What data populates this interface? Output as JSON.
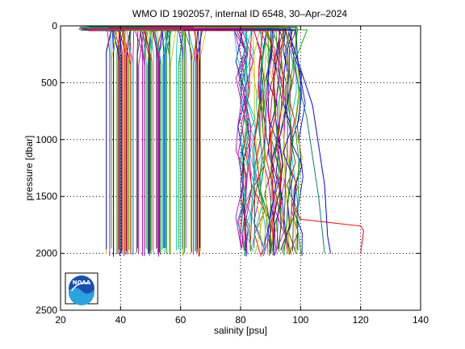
{
  "chart_data": {
    "type": "line",
    "title": "WMO ID 1902057, internal ID 6548, 30–Apr–2024",
    "xlabel": "salinity [psu]",
    "ylabel": "pressure [dbar]",
    "xlim": [
      20,
      140
    ],
    "ylim": [
      0,
      2500
    ],
    "y_reversed": true,
    "xticks": [
      "20",
      "40",
      "60",
      "80",
      "100",
      "120",
      "140"
    ],
    "yticks": [
      "0",
      "500",
      "1000",
      "1500",
      "2000",
      "2500"
    ],
    "grid": true,
    "colors": [
      "#0000ff",
      "#00a000",
      "#ff0000",
      "#00c0c0",
      "#c000c0",
      "#c0c000",
      "#404040"
    ],
    "series_groups": [
      {
        "description": "dense profiles near 35-57 psu",
        "x_min": 35,
        "x_max": 57,
        "count": 70
      },
      {
        "description": "dense profiles near 58-67 psu",
        "x_min": 58,
        "x_max": 67,
        "count": 20
      },
      {
        "description": "dense profiles near 80-100 psu",
        "x_min": 80,
        "x_max": 100,
        "count": 60
      }
    ],
    "highlight_series": [
      {
        "color": "#ff0000",
        "x": [
          98,
          100,
          110,
          120,
          121,
          120
        ],
        "y": [
          1600,
          1700,
          1730,
          1760,
          1800,
          2000
        ]
      },
      {
        "color": "#0000ff",
        "x": [
          96,
          104,
          108,
          109,
          110
        ],
        "y": [
          60,
          700,
          1400,
          1850,
          2000
        ]
      },
      {
        "color": "#008080",
        "x": [
          95,
          102,
          106,
          108
        ],
        "y": [
          60,
          800,
          1500,
          2000
        ]
      }
    ]
  },
  "logo": {
    "text": "NOAA"
  }
}
